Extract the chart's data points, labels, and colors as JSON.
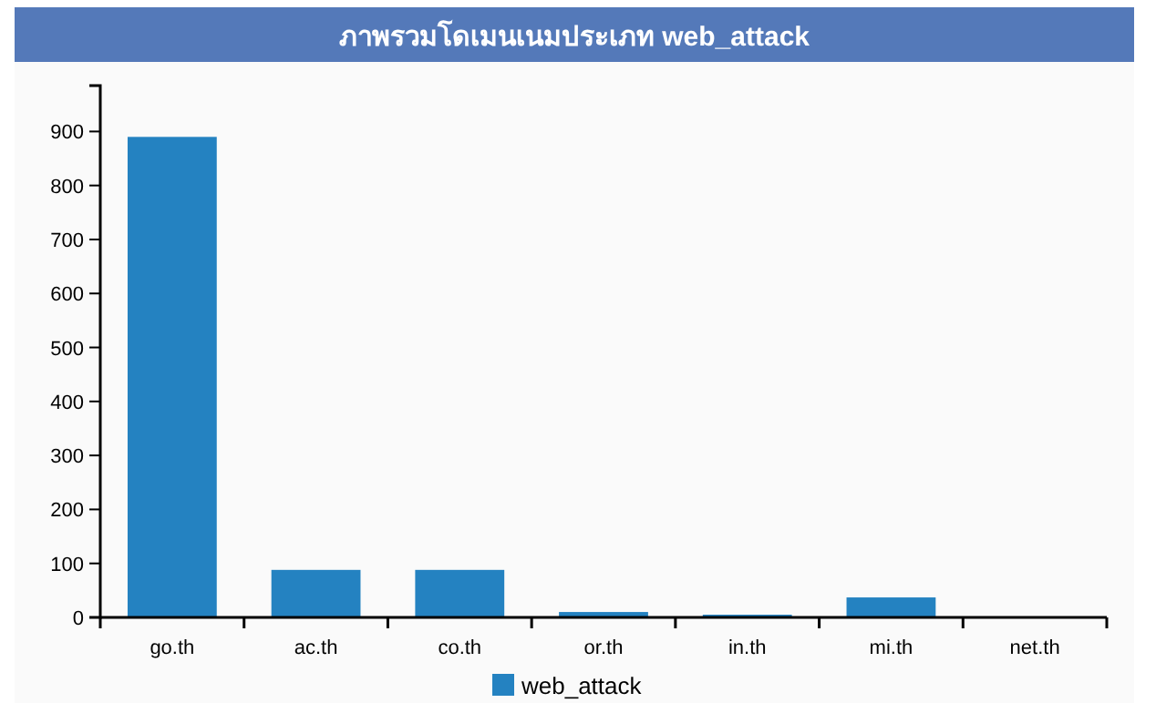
{
  "chart_data": {
    "type": "bar",
    "title": "ภาพรวมโดเมนเนมประเภท web_attack",
    "categories": [
      "go.th",
      "ac.th",
      "co.th",
      "or.th",
      "in.th",
      "mi.th",
      "net.th"
    ],
    "series": [
      {
        "name": "web_attack",
        "color": "#2482c1",
        "values": [
          890,
          88,
          88,
          10,
          5,
          37,
          0
        ]
      }
    ],
    "ylim": [
      0,
      985
    ],
    "yticks": [
      0,
      100,
      200,
      300,
      400,
      500,
      600,
      700,
      800,
      900
    ],
    "grid": false,
    "legend": "bottom"
  }
}
